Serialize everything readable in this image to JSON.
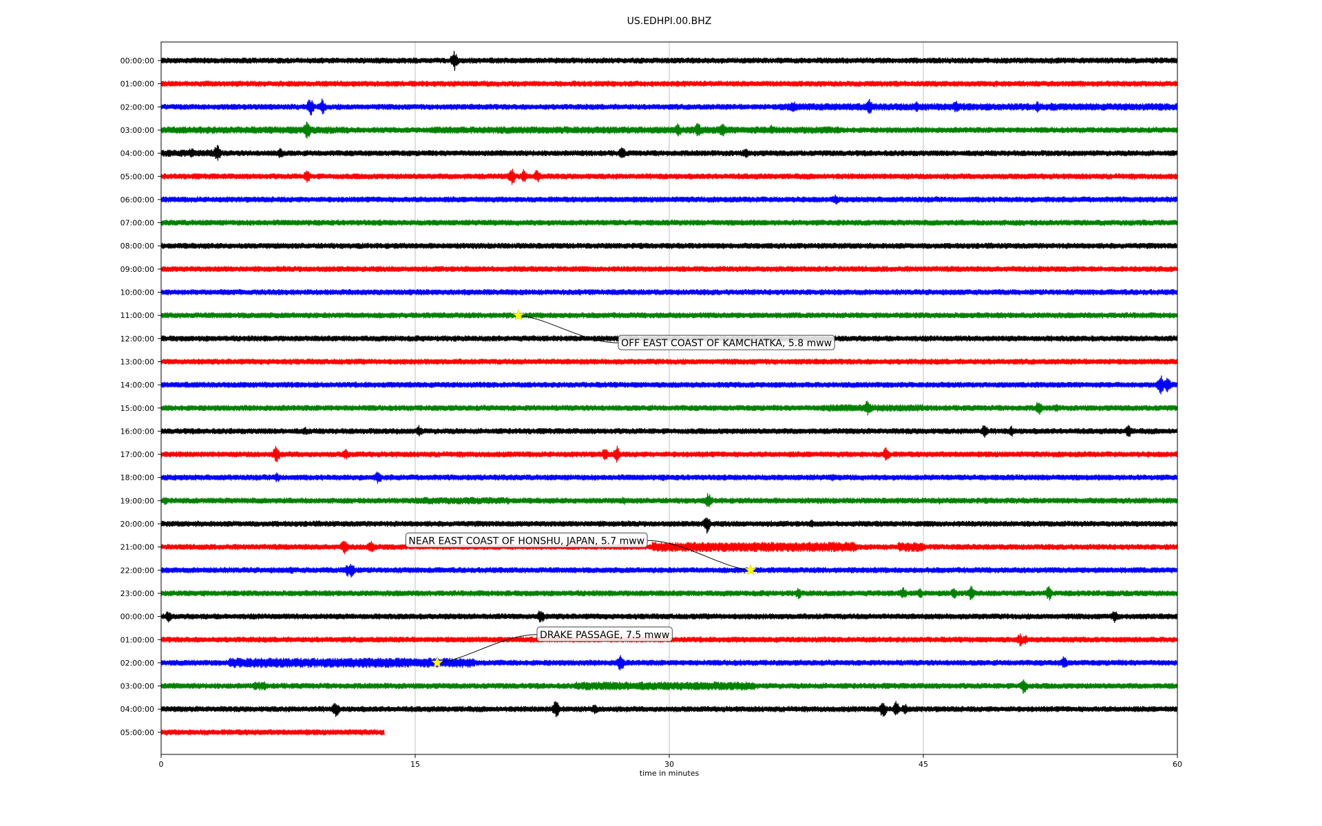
{
  "chart_data": {
    "type": "line",
    "title": "US.EDHPI.00.BHZ",
    "xlabel": "time in minutes",
    "ylabel": "",
    "xlim": [
      0,
      60
    ],
    "x_ticks": [
      "0",
      "15",
      "30",
      "45",
      "60"
    ],
    "grid": "vertical",
    "line_colors": [
      "#000000",
      "#ff0000",
      "#0000ff",
      "#008000"
    ],
    "rows": [
      {
        "label": "00:00:00",
        "end_minute": 60,
        "events": [
          {
            "t": 17.3,
            "amp": 15
          },
          {
            "t": 56.0,
            "amp": 4
          }
        ]
      },
      {
        "label": "01:00:00",
        "end_minute": 60,
        "events": []
      },
      {
        "label": "02:00:00",
        "end_minute": 60,
        "events": [
          {
            "t": 8.8,
            "amp": 14
          },
          {
            "t": 9.5,
            "amp": 12
          },
          {
            "t": 37.3,
            "amp": 10
          },
          {
            "t": 41.8,
            "amp": 12
          },
          {
            "t": 44.6,
            "amp": 8
          },
          {
            "t": 46.9,
            "amp": 10
          },
          {
            "t": 51.7,
            "amp": 9
          },
          {
            "t": 52.6,
            "amp": 8
          }
        ]
      },
      {
        "label": "03:00:00",
        "end_minute": 60,
        "events": [
          {
            "t": 8.6,
            "amp": 16
          },
          {
            "t": 30.5,
            "amp": 10
          },
          {
            "t": 31.7,
            "amp": 12
          },
          {
            "t": 33.1,
            "amp": 12
          },
          {
            "t": 36.0,
            "amp": 8
          }
        ]
      },
      {
        "label": "04:00:00",
        "end_minute": 60,
        "events": [
          {
            "t": 1.8,
            "amp": 9
          },
          {
            "t": 3.3,
            "amp": 14
          },
          {
            "t": 7.0,
            "amp": 9
          },
          {
            "t": 27.2,
            "amp": 10
          },
          {
            "t": 34.5,
            "amp": 8
          }
        ]
      },
      {
        "label": "05:00:00",
        "end_minute": 60,
        "events": [
          {
            "t": 8.6,
            "amp": 10
          },
          {
            "t": 20.7,
            "amp": 13
          },
          {
            "t": 21.4,
            "amp": 10
          },
          {
            "t": 22.2,
            "amp": 11
          }
        ]
      },
      {
        "label": "06:00:00",
        "end_minute": 60,
        "events": [
          {
            "t": 39.8,
            "amp": 8
          }
        ]
      },
      {
        "label": "07:00:00",
        "end_minute": 60,
        "events": []
      },
      {
        "label": "08:00:00",
        "end_minute": 60,
        "events": []
      },
      {
        "label": "09:00:00",
        "end_minute": 60,
        "events": []
      },
      {
        "label": "10:00:00",
        "end_minute": 60,
        "events": [
          {
            "t": 55.0,
            "amp": 5
          }
        ]
      },
      {
        "label": "11:00:00",
        "end_minute": 60,
        "events": []
      },
      {
        "label": "12:00:00",
        "end_minute": 60,
        "events": []
      },
      {
        "label": "13:00:00",
        "end_minute": 60,
        "events": []
      },
      {
        "label": "14:00:00",
        "end_minute": 60,
        "events": [
          {
            "t": 14.7,
            "amp": 5
          },
          {
            "t": 59.0,
            "amp": 16
          },
          {
            "t": 59.4,
            "amp": 12
          }
        ]
      },
      {
        "label": "15:00:00",
        "end_minute": 60,
        "events": [
          {
            "t": 41.7,
            "amp": 12
          },
          {
            "t": 42.5,
            "amp": 6
          },
          {
            "t": 51.8,
            "amp": 11
          },
          {
            "t": 52.8,
            "amp": 7
          }
        ]
      },
      {
        "label": "16:00:00",
        "end_minute": 60,
        "events": [
          {
            "t": 8.5,
            "amp": 7
          },
          {
            "t": 15.2,
            "amp": 9
          },
          {
            "t": 48.6,
            "amp": 11
          },
          {
            "t": 50.2,
            "amp": 8
          },
          {
            "t": 57.1,
            "amp": 10
          }
        ]
      },
      {
        "label": "17:00:00",
        "end_minute": 60,
        "events": [
          {
            "t": 6.8,
            "amp": 13
          },
          {
            "t": 10.9,
            "amp": 9
          },
          {
            "t": 26.2,
            "amp": 10
          },
          {
            "t": 26.9,
            "amp": 13
          },
          {
            "t": 42.8,
            "amp": 12
          }
        ]
      },
      {
        "label": "18:00:00",
        "end_minute": 60,
        "events": [
          {
            "t": 6.8,
            "amp": 8
          },
          {
            "t": 12.8,
            "amp": 10
          },
          {
            "t": 29.6,
            "amp": 5
          },
          {
            "t": 39.6,
            "amp": 6
          }
        ]
      },
      {
        "label": "19:00:00",
        "end_minute": 60,
        "events": [
          {
            "t": 0.2,
            "amp": 6
          },
          {
            "t": 27.3,
            "amp": 6
          },
          {
            "t": 32.3,
            "amp": 12
          },
          {
            "t": 45.9,
            "amp": 6
          }
        ]
      },
      {
        "label": "20:00:00",
        "end_minute": 60,
        "events": [
          {
            "t": 32.2,
            "amp": 14
          },
          {
            "t": 38.4,
            "amp": 6
          },
          {
            "t": 49.0,
            "amp": 5
          }
        ]
      },
      {
        "label": "21:00:00",
        "end_minute": 60,
        "events": [
          {
            "t": 10.8,
            "amp": 12
          },
          {
            "t": 12.4,
            "amp": 10
          },
          {
            "t": 38.0,
            "amp": 8
          }
        ]
      },
      {
        "label": "22:00:00",
        "end_minute": 60,
        "events": [
          {
            "t": 11.2,
            "amp": 14
          },
          {
            "t": 11.0,
            "amp": 10
          },
          {
            "t": 7.7,
            "amp": 6
          }
        ]
      },
      {
        "label": "23:00:00",
        "end_minute": 60,
        "events": [
          {
            "t": 37.6,
            "amp": 9
          },
          {
            "t": 43.8,
            "amp": 10
          },
          {
            "t": 44.8,
            "amp": 8
          },
          {
            "t": 46.8,
            "amp": 9
          },
          {
            "t": 47.8,
            "amp": 12
          },
          {
            "t": 52.4,
            "amp": 11
          }
        ]
      },
      {
        "label": "00:00:00",
        "end_minute": 60,
        "events": [
          {
            "t": 0.4,
            "amp": 9
          },
          {
            "t": 22.4,
            "amp": 11
          },
          {
            "t": 56.3,
            "amp": 10
          }
        ]
      },
      {
        "label": "01:00:00",
        "end_minute": 60,
        "events": [
          {
            "t": 12.8,
            "amp": 5
          },
          {
            "t": 50.7,
            "amp": 10
          },
          {
            "t": 51.0,
            "amp": 8
          }
        ]
      },
      {
        "label": "02:00:00",
        "end_minute": 60,
        "events": [
          {
            "t": 27.1,
            "amp": 14
          },
          {
            "t": 53.3,
            "amp": 11
          }
        ]
      },
      {
        "label": "03:00:00",
        "end_minute": 60,
        "events": [
          {
            "t": 5.7,
            "amp": 4
          },
          {
            "t": 32.0,
            "amp": 8
          },
          {
            "t": 34.8,
            "amp": 6
          },
          {
            "t": 50.9,
            "amp": 13
          }
        ]
      },
      {
        "label": "04:00:00",
        "end_minute": 60,
        "events": [
          {
            "t": 10.3,
            "amp": 12
          },
          {
            "t": 23.3,
            "amp": 14
          },
          {
            "t": 25.6,
            "amp": 8
          },
          {
            "t": 42.6,
            "amp": 14
          },
          {
            "t": 43.4,
            "amp": 12
          },
          {
            "t": 43.9,
            "amp": 9
          }
        ]
      },
      {
        "label": "05:00:00",
        "end_minute": 13.2,
        "events": []
      }
    ],
    "busy_segments": [
      {
        "row": 2,
        "from": 36.5,
        "to": 60,
        "amp": 5
      },
      {
        "row": 3,
        "from": 0,
        "to": 11,
        "amp": 5
      },
      {
        "row": 3,
        "from": 16,
        "to": 40,
        "amp": 5
      },
      {
        "row": 4,
        "from": 0,
        "to": 3.5,
        "amp": 5
      },
      {
        "row": 15,
        "from": 39,
        "to": 45,
        "amp": 5
      },
      {
        "row": 19,
        "from": 15,
        "to": 20.5,
        "amp": 5
      },
      {
        "row": 21,
        "from": 29,
        "to": 41,
        "amp": 7
      },
      {
        "row": 21,
        "from": 43.5,
        "to": 45,
        "amp": 7
      },
      {
        "row": 26,
        "from": 4,
        "to": 18.5,
        "amp": 7
      },
      {
        "row": 27,
        "from": 24.5,
        "to": 35,
        "amp": 6
      },
      {
        "row": 27,
        "from": 5.4,
        "to": 6.2,
        "amp": 6
      }
    ],
    "annotations": [
      {
        "text": "OFF EAST COAST OF KAMCHATKA, 5.8 mww",
        "row": 11,
        "t": 21.1
      },
      {
        "text": "NEAR EAST COAST OF HONSHU, JAPAN, 5.7 mww",
        "row": 22,
        "t": 34.8
      },
      {
        "text": "DRAKE PASSAGE, 7.5 mww",
        "row": 26,
        "t": 16.3
      }
    ]
  }
}
